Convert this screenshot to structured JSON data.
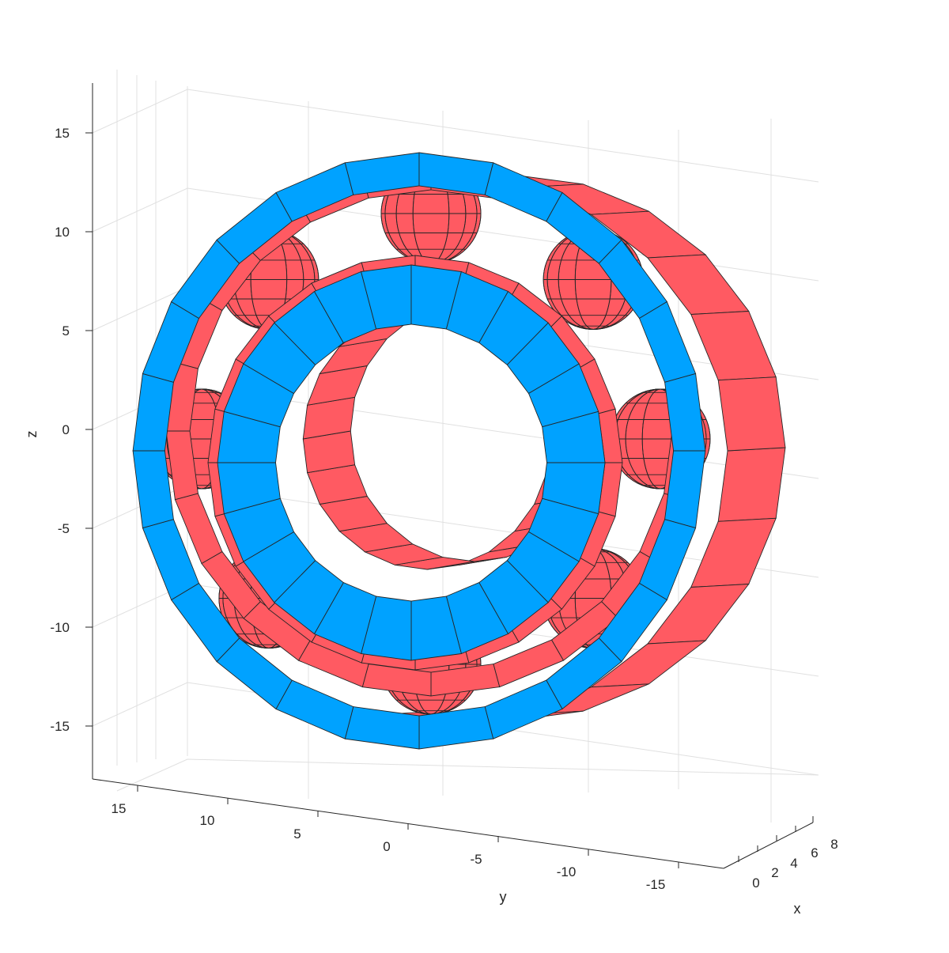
{
  "colors": {
    "race_face": "#00a2ff",
    "race_body": "#ff5a62",
    "balls": "#ff5a62",
    "edges": "#262626",
    "grid": "#e0e0e0"
  },
  "axes": {
    "xlabel": "x",
    "ylabel": "y",
    "zlabel": "z",
    "z_ticks": [
      "15",
      "10",
      "5",
      "0",
      "-5",
      "-10",
      "-15"
    ],
    "y_ticks": [
      "15",
      "10",
      "5",
      "0",
      "-5",
      "-10",
      "-15"
    ],
    "x_ticks": [
      "0",
      "2",
      "4",
      "6",
      "8"
    ]
  },
  "model": {
    "name": "ball-bearing",
    "ball_count": 8,
    "segments": 24,
    "grid": "on"
  }
}
